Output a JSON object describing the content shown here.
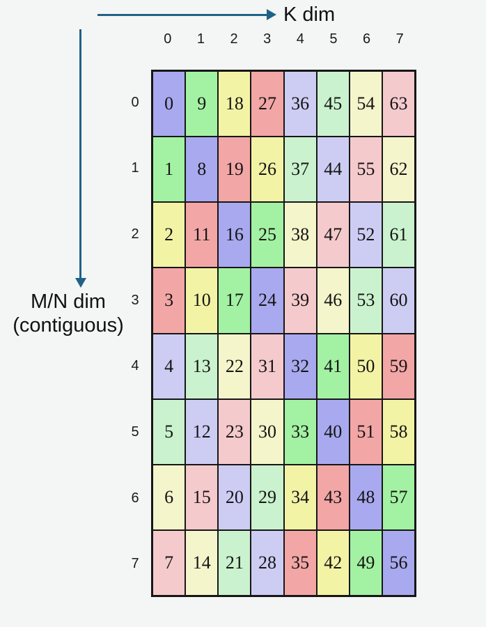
{
  "axes": {
    "k_label": "K dim",
    "mn_label_line1": "M/N dim",
    "mn_label_line2": "(contiguous)",
    "arrow_color": "#1f6287"
  },
  "col_headers": [
    "0",
    "1",
    "2",
    "3",
    "4",
    "5",
    "6",
    "7"
  ],
  "row_headers": [
    "0",
    "1",
    "2",
    "3",
    "4",
    "5",
    "6",
    "7"
  ],
  "palette": {
    "blue": "#a9a9ef",
    "green": "#a3f2a3",
    "yellow": "#f3f3a6",
    "red": "#f3a6a6",
    "blue_light": "#cdcdf4",
    "green_light": "#caf2ce",
    "yellow_light": "#f4f5cb",
    "red_light": "#f5cacd"
  },
  "grid": {
    "rows": [
      {
        "label": "0",
        "cells": [
          {
            "v": "0",
            "c": "blue"
          },
          {
            "v": "9",
            "c": "green"
          },
          {
            "v": "18",
            "c": "yellow"
          },
          {
            "v": "27",
            "c": "red"
          },
          {
            "v": "36",
            "c": "blue_light"
          },
          {
            "v": "45",
            "c": "green_light"
          },
          {
            "v": "54",
            "c": "yellow_light"
          },
          {
            "v": "63",
            "c": "red_light"
          }
        ]
      },
      {
        "label": "1",
        "cells": [
          {
            "v": "1",
            "c": "green"
          },
          {
            "v": "8",
            "c": "blue"
          },
          {
            "v": "19",
            "c": "red"
          },
          {
            "v": "26",
            "c": "yellow"
          },
          {
            "v": "37",
            "c": "green_light"
          },
          {
            "v": "44",
            "c": "blue_light"
          },
          {
            "v": "55",
            "c": "red_light"
          },
          {
            "v": "62",
            "c": "yellow_light"
          }
        ]
      },
      {
        "label": "2",
        "cells": [
          {
            "v": "2",
            "c": "yellow"
          },
          {
            "v": "11",
            "c": "red"
          },
          {
            "v": "16",
            "c": "blue"
          },
          {
            "v": "25",
            "c": "green"
          },
          {
            "v": "38",
            "c": "yellow_light"
          },
          {
            "v": "47",
            "c": "red_light"
          },
          {
            "v": "52",
            "c": "blue_light"
          },
          {
            "v": "61",
            "c": "green_light"
          }
        ]
      },
      {
        "label": "3",
        "cells": [
          {
            "v": "3",
            "c": "red"
          },
          {
            "v": "10",
            "c": "yellow"
          },
          {
            "v": "17",
            "c": "green"
          },
          {
            "v": "24",
            "c": "blue"
          },
          {
            "v": "39",
            "c": "red_light"
          },
          {
            "v": "46",
            "c": "yellow_light"
          },
          {
            "v": "53",
            "c": "green_light"
          },
          {
            "v": "60",
            "c": "blue_light"
          }
        ]
      },
      {
        "label": "4",
        "cells": [
          {
            "v": "4",
            "c": "blue_light"
          },
          {
            "v": "13",
            "c": "green_light"
          },
          {
            "v": "22",
            "c": "yellow_light"
          },
          {
            "v": "31",
            "c": "red_light"
          },
          {
            "v": "32",
            "c": "blue"
          },
          {
            "v": "41",
            "c": "green"
          },
          {
            "v": "50",
            "c": "yellow"
          },
          {
            "v": "59",
            "c": "red"
          }
        ]
      },
      {
        "label": "5",
        "cells": [
          {
            "v": "5",
            "c": "green_light"
          },
          {
            "v": "12",
            "c": "blue_light"
          },
          {
            "v": "23",
            "c": "red_light"
          },
          {
            "v": "30",
            "c": "yellow_light"
          },
          {
            "v": "33",
            "c": "green"
          },
          {
            "v": "40",
            "c": "blue"
          },
          {
            "v": "51",
            "c": "red"
          },
          {
            "v": "58",
            "c": "yellow"
          }
        ]
      },
      {
        "label": "6",
        "cells": [
          {
            "v": "6",
            "c": "yellow_light"
          },
          {
            "v": "15",
            "c": "red_light"
          },
          {
            "v": "20",
            "c": "blue_light"
          },
          {
            "v": "29",
            "c": "green_light"
          },
          {
            "v": "34",
            "c": "yellow"
          },
          {
            "v": "43",
            "c": "red"
          },
          {
            "v": "48",
            "c": "blue"
          },
          {
            "v": "57",
            "c": "green"
          }
        ]
      },
      {
        "label": "7",
        "cells": [
          {
            "v": "7",
            "c": "red_light"
          },
          {
            "v": "14",
            "c": "yellow_light"
          },
          {
            "v": "21",
            "c": "green_light"
          },
          {
            "v": "28",
            "c": "blue_light"
          },
          {
            "v": "35",
            "c": "red"
          },
          {
            "v": "42",
            "c": "yellow"
          },
          {
            "v": "49",
            "c": "green"
          },
          {
            "v": "56",
            "c": "blue"
          }
        ]
      }
    ]
  }
}
